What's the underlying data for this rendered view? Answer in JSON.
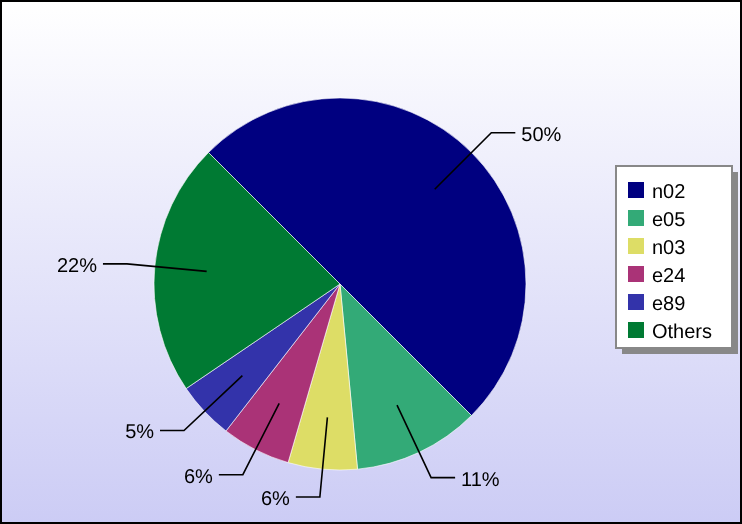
{
  "chart_data": {
    "type": "pie",
    "categories": [
      "n02",
      "e05",
      "n03",
      "e24",
      "e89",
      "Others"
    ],
    "values": [
      50,
      11,
      6,
      6,
      5,
      22
    ],
    "colors": [
      "#000080",
      "#33aa77",
      "#dddd66",
      "#aa3377",
      "#3333aa",
      "#007a33"
    ],
    "value_labels": [
      "50%",
      "11%",
      "6%",
      "6%",
      "5%",
      "22%"
    ],
    "legend": "right"
  }
}
